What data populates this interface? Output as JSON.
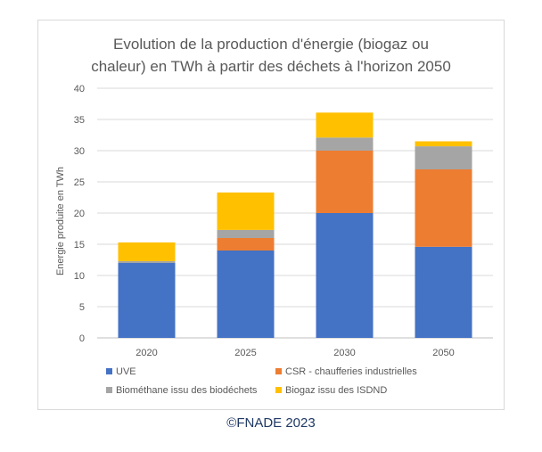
{
  "chart_data": {
    "type": "bar",
    "stacked": true,
    "title_lines": [
      "Evolution de la production d'énergie (biogaz ou",
      "chaleur) en TWh à partir des déchets à l'horizon 2050"
    ],
    "ylabel": "Energie produite en TWh",
    "xlabel": "",
    "ylim": [
      0,
      40
    ],
    "yticks": [
      0,
      5,
      10,
      15,
      20,
      25,
      30,
      35,
      40
    ],
    "grid": true,
    "legend_position": "bottom",
    "categories": [
      "2020",
      "2025",
      "2030",
      "2050"
    ],
    "series": [
      {
        "name": "UVE",
        "color": "#4472c4",
        "values": [
          12.0,
          14.0,
          20.0,
          14.6
        ]
      },
      {
        "name": "CSR - chaufferies  industrielles",
        "color": "#ed7d31",
        "values": [
          0.0,
          2.0,
          10.0,
          12.4
        ]
      },
      {
        "name": "Biométhane issu des biodéchets",
        "color": "#a5a5a5",
        "values": [
          0.3,
          1.3,
          2.1,
          3.7
        ]
      },
      {
        "name": "Biogaz issu des ISDND",
        "color": "#ffc000",
        "values": [
          3.0,
          6.0,
          4.0,
          0.8
        ]
      }
    ]
  },
  "footer": {
    "copyright": "©FNADE 2023"
  }
}
